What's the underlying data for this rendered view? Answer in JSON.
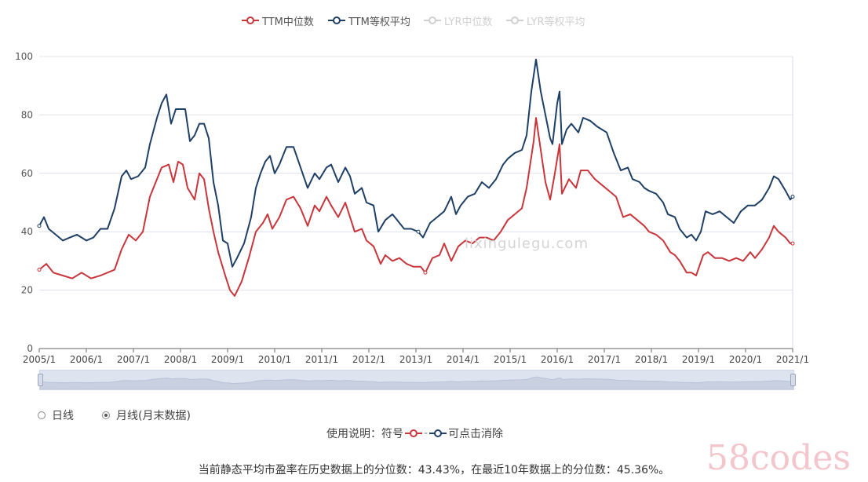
{
  "legend": [
    {
      "label": "TTM中位数",
      "color": "#c8363c",
      "active": true
    },
    {
      "label": "TTM等权平均",
      "color": "#1f3f66",
      "active": true
    },
    {
      "label": "LYR中位数",
      "color": "#c9c9c9",
      "active": false
    },
    {
      "label": "LYR等权平均",
      "color": "#c9c9c9",
      "active": false
    }
  ],
  "chart_data": {
    "type": "line",
    "title": "",
    "xlabel": "",
    "ylabel": "",
    "ylim": [
      0,
      100
    ],
    "yticks": [
      0,
      20,
      40,
      60,
      80,
      100
    ],
    "xlim": [
      2005.0,
      2021.0
    ],
    "xtick_labels": [
      "2005/1",
      "2006/1",
      "2007/1",
      "2008/1",
      "2009/1",
      "2010/1",
      "2011/1",
      "2012/1",
      "2013/1",
      "2014/1",
      "2015/1",
      "2016/1",
      "2017/1",
      "2018/1",
      "2019/1",
      "2020/1",
      "2021/1"
    ],
    "grid": true,
    "series": [
      {
        "name": "TTM中位数",
        "color": "#c8363c",
        "points": [
          [
            2005.0,
            27
          ],
          [
            2005.15,
            29
          ],
          [
            2005.3,
            26
          ],
          [
            2005.5,
            25
          ],
          [
            2005.7,
            24
          ],
          [
            2005.9,
            26
          ],
          [
            2006.1,
            24
          ],
          [
            2006.3,
            25
          ],
          [
            2006.45,
            26
          ],
          [
            2006.6,
            27
          ],
          [
            2006.75,
            34
          ],
          [
            2006.9,
            39
          ],
          [
            2007.05,
            37
          ],
          [
            2007.2,
            40
          ],
          [
            2007.35,
            52
          ],
          [
            2007.5,
            58
          ],
          [
            2007.6,
            62
          ],
          [
            2007.75,
            63
          ],
          [
            2007.85,
            57
          ],
          [
            2007.95,
            64
          ],
          [
            2008.05,
            63
          ],
          [
            2008.15,
            55
          ],
          [
            2008.3,
            51
          ],
          [
            2008.4,
            60
          ],
          [
            2008.5,
            58
          ],
          [
            2008.6,
            48
          ],
          [
            2008.7,
            40
          ],
          [
            2008.8,
            33
          ],
          [
            2008.95,
            25
          ],
          [
            2009.05,
            20
          ],
          [
            2009.15,
            18
          ],
          [
            2009.3,
            23
          ],
          [
            2009.45,
            31
          ],
          [
            2009.6,
            40
          ],
          [
            2009.75,
            43
          ],
          [
            2009.85,
            46
          ],
          [
            2009.95,
            41
          ],
          [
            2010.1,
            45
          ],
          [
            2010.25,
            51
          ],
          [
            2010.4,
            52
          ],
          [
            2010.55,
            48
          ],
          [
            2010.7,
            42
          ],
          [
            2010.85,
            49
          ],
          [
            2010.95,
            47
          ],
          [
            2011.1,
            52
          ],
          [
            2011.2,
            49
          ],
          [
            2011.35,
            45
          ],
          [
            2011.5,
            50
          ],
          [
            2011.6,
            45
          ],
          [
            2011.7,
            40
          ],
          [
            2011.85,
            41
          ],
          [
            2011.95,
            37
          ],
          [
            2012.1,
            35
          ],
          [
            2012.25,
            29
          ],
          [
            2012.35,
            32
          ],
          [
            2012.5,
            30
          ],
          [
            2012.65,
            31
          ],
          [
            2012.8,
            29
          ],
          [
            2012.95,
            28
          ],
          [
            2013.1,
            28
          ],
          [
            2013.2,
            26
          ],
          [
            2013.35,
            31
          ],
          [
            2013.5,
            32
          ],
          [
            2013.6,
            36
          ],
          [
            2013.75,
            30
          ],
          [
            2013.9,
            35
          ],
          [
            2014.05,
            37
          ],
          [
            2014.2,
            36
          ],
          [
            2014.35,
            38
          ],
          [
            2014.5,
            38
          ],
          [
            2014.65,
            37
          ],
          [
            2014.8,
            40
          ],
          [
            2014.95,
            44
          ],
          [
            2015.1,
            46
          ],
          [
            2015.25,
            48
          ],
          [
            2015.35,
            55
          ],
          [
            2015.5,
            71
          ],
          [
            2015.55,
            79
          ],
          [
            2015.65,
            68
          ],
          [
            2015.75,
            57
          ],
          [
            2015.85,
            51
          ],
          [
            2015.95,
            60
          ],
          [
            2016.05,
            70
          ],
          [
            2016.1,
            53
          ],
          [
            2016.25,
            58
          ],
          [
            2016.4,
            55
          ],
          [
            2016.5,
            61
          ],
          [
            2016.65,
            61
          ],
          [
            2016.8,
            58
          ],
          [
            2016.95,
            56
          ],
          [
            2017.1,
            54
          ],
          [
            2017.25,
            52
          ],
          [
            2017.4,
            45
          ],
          [
            2017.55,
            46
          ],
          [
            2017.7,
            44
          ],
          [
            2017.85,
            42
          ],
          [
            2017.95,
            40
          ],
          [
            2018.1,
            39
          ],
          [
            2018.25,
            37
          ],
          [
            2018.4,
            33
          ],
          [
            2018.5,
            32
          ],
          [
            2018.6,
            30
          ],
          [
            2018.75,
            26
          ],
          [
            2018.85,
            26
          ],
          [
            2018.95,
            25
          ],
          [
            2019.1,
            32
          ],
          [
            2019.2,
            33
          ],
          [
            2019.35,
            31
          ],
          [
            2019.5,
            31
          ],
          [
            2019.65,
            30
          ],
          [
            2019.8,
            31
          ],
          [
            2019.95,
            30
          ],
          [
            2020.1,
            33
          ],
          [
            2020.2,
            31
          ],
          [
            2020.35,
            34
          ],
          [
            2020.5,
            38
          ],
          [
            2020.6,
            42
          ],
          [
            2020.7,
            40
          ],
          [
            2020.85,
            38
          ],
          [
            2020.95,
            36
          ],
          [
            2021.0,
            36
          ]
        ]
      },
      {
        "name": "TTM等权平均",
        "color": "#1f3f66",
        "points": [
          [
            2005.0,
            42
          ],
          [
            2005.1,
            45
          ],
          [
            2005.2,
            41
          ],
          [
            2005.35,
            39
          ],
          [
            2005.5,
            37
          ],
          [
            2005.65,
            38
          ],
          [
            2005.8,
            39
          ],
          [
            2006.0,
            37
          ],
          [
            2006.15,
            38
          ],
          [
            2006.3,
            41
          ],
          [
            2006.45,
            41
          ],
          [
            2006.6,
            48
          ],
          [
            2006.75,
            59
          ],
          [
            2006.85,
            61
          ],
          [
            2006.95,
            58
          ],
          [
            2007.1,
            59
          ],
          [
            2007.25,
            62
          ],
          [
            2007.35,
            70
          ],
          [
            2007.5,
            79
          ],
          [
            2007.6,
            84
          ],
          [
            2007.7,
            87
          ],
          [
            2007.8,
            77
          ],
          [
            2007.9,
            82
          ],
          [
            2008.0,
            82
          ],
          [
            2008.1,
            82
          ],
          [
            2008.2,
            71
          ],
          [
            2008.3,
            73
          ],
          [
            2008.4,
            77
          ],
          [
            2008.5,
            77
          ],
          [
            2008.6,
            72
          ],
          [
            2008.7,
            57
          ],
          [
            2008.8,
            49
          ],
          [
            2008.9,
            37
          ],
          [
            2009.0,
            36
          ],
          [
            2009.1,
            28
          ],
          [
            2009.2,
            31
          ],
          [
            2009.35,
            36
          ],
          [
            2009.5,
            45
          ],
          [
            2009.6,
            55
          ],
          [
            2009.7,
            60
          ],
          [
            2009.8,
            64
          ],
          [
            2009.9,
            66
          ],
          [
            2010.0,
            60
          ],
          [
            2010.1,
            63
          ],
          [
            2010.25,
            69
          ],
          [
            2010.4,
            69
          ],
          [
            2010.55,
            62
          ],
          [
            2010.7,
            55
          ],
          [
            2010.85,
            60
          ],
          [
            2010.95,
            58
          ],
          [
            2011.1,
            62
          ],
          [
            2011.2,
            63
          ],
          [
            2011.35,
            57
          ],
          [
            2011.5,
            62
          ],
          [
            2011.6,
            59
          ],
          [
            2011.7,
            53
          ],
          [
            2011.85,
            55
          ],
          [
            2011.95,
            50
          ],
          [
            2012.1,
            49
          ],
          [
            2012.2,
            40
          ],
          [
            2012.35,
            44
          ],
          [
            2012.5,
            46
          ],
          [
            2012.6,
            44
          ],
          [
            2012.75,
            41
          ],
          [
            2012.9,
            41
          ],
          [
            2013.05,
            40
          ],
          [
            2013.15,
            38
          ],
          [
            2013.3,
            43
          ],
          [
            2013.45,
            45
          ],
          [
            2013.6,
            47
          ],
          [
            2013.75,
            52
          ],
          [
            2013.85,
            46
          ],
          [
            2013.95,
            49
          ],
          [
            2014.1,
            52
          ],
          [
            2014.25,
            53
          ],
          [
            2014.4,
            57
          ],
          [
            2014.55,
            55
          ],
          [
            2014.7,
            58
          ],
          [
            2014.85,
            63
          ],
          [
            2014.95,
            65
          ],
          [
            2015.1,
            67
          ],
          [
            2015.25,
            68
          ],
          [
            2015.35,
            73
          ],
          [
            2015.45,
            88
          ],
          [
            2015.55,
            99
          ],
          [
            2015.65,
            88
          ],
          [
            2015.75,
            80
          ],
          [
            2015.85,
            72
          ],
          [
            2015.9,
            70
          ],
          [
            2016.0,
            84
          ],
          [
            2016.05,
            88
          ],
          [
            2016.1,
            70
          ],
          [
            2016.2,
            75
          ],
          [
            2016.3,
            77
          ],
          [
            2016.45,
            74
          ],
          [
            2016.55,
            79
          ],
          [
            2016.7,
            78
          ],
          [
            2016.85,
            76
          ],
          [
            2016.95,
            75
          ],
          [
            2017.05,
            74
          ],
          [
            2017.2,
            67
          ],
          [
            2017.35,
            61
          ],
          [
            2017.5,
            62
          ],
          [
            2017.6,
            58
          ],
          [
            2017.75,
            57
          ],
          [
            2017.85,
            55
          ],
          [
            2017.95,
            54
          ],
          [
            2018.1,
            53
          ],
          [
            2018.25,
            50
          ],
          [
            2018.35,
            46
          ],
          [
            2018.5,
            45
          ],
          [
            2018.6,
            41
          ],
          [
            2018.75,
            38
          ],
          [
            2018.85,
            39
          ],
          [
            2018.95,
            37
          ],
          [
            2019.05,
            40
          ],
          [
            2019.15,
            47
          ],
          [
            2019.3,
            46
          ],
          [
            2019.45,
            47
          ],
          [
            2019.6,
            45
          ],
          [
            2019.75,
            43
          ],
          [
            2019.9,
            47
          ],
          [
            2020.05,
            49
          ],
          [
            2020.2,
            49
          ],
          [
            2020.35,
            51
          ],
          [
            2020.5,
            55
          ],
          [
            2020.6,
            59
          ],
          [
            2020.7,
            58
          ],
          [
            2020.85,
            54
          ],
          [
            2020.95,
            51
          ],
          [
            2021.0,
            52
          ]
        ]
      }
    ]
  },
  "slider": {
    "start": 0,
    "end": 100
  },
  "mode_options": [
    {
      "label": "日线",
      "selected": false
    },
    {
      "label": "月线(月末数据)",
      "selected": true
    }
  ],
  "usage": {
    "prefix": "使用说明：符号",
    "suffix": "可点击消除"
  },
  "summary": "当前静态平均市盈率在历史数据上的分位数：43.43%，在最近10年数据上的分位数：45.36%。",
  "watermark": "lixingulegu.com",
  "brand": "58codes"
}
